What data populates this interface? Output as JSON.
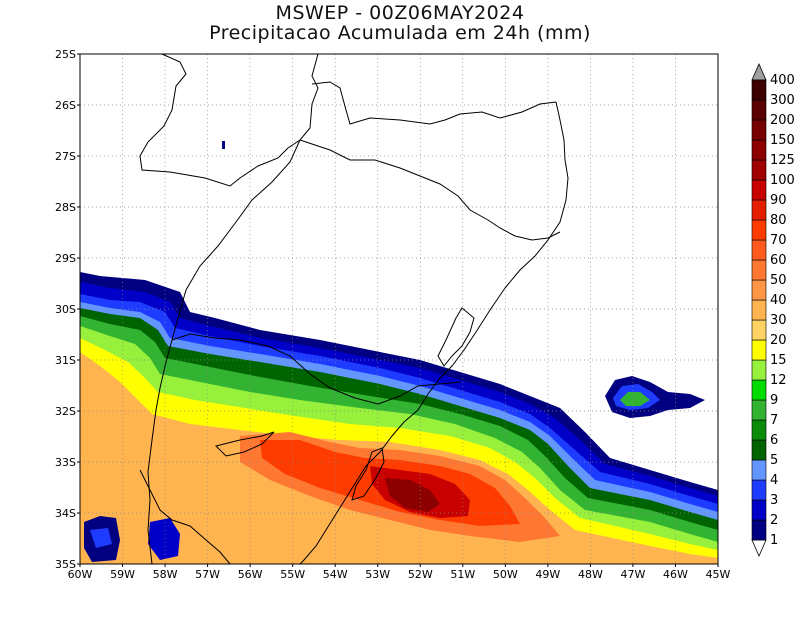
{
  "title": {
    "line1": "MSWEP - 00Z06MAY2024",
    "line2": "Precipitacao Acumulada em 24h (mm)"
  },
  "map": {
    "lon_range": [
      -60,
      -45
    ],
    "lat_range": [
      -35,
      -25
    ],
    "lat_labels": [
      "25S",
      "26S",
      "27S",
      "28S",
      "29S",
      "30S",
      "31S",
      "32S",
      "33S",
      "34S",
      "35S"
    ],
    "lon_labels": [
      "60W",
      "59W",
      "58W",
      "57W",
      "56W",
      "55W",
      "54W",
      "53W",
      "52W",
      "51W",
      "50W",
      "49W",
      "48W",
      "47W",
      "46W",
      "45W"
    ],
    "grid": "dotted"
  },
  "colorbar": {
    "units": "mm",
    "levels": [
      "1",
      "2",
      "3",
      "4",
      "5",
      "6",
      "7",
      "9",
      "12",
      "15",
      "20",
      "30",
      "40",
      "50",
      "60",
      "70",
      "80",
      "90",
      "100",
      "125",
      "150",
      "200",
      "300",
      "400"
    ],
    "colors": [
      "#ffffff",
      "#000080",
      "#0000c8",
      "#1e3cff",
      "#6496ff",
      "#006400",
      "#0a8c0a",
      "#32b432",
      "#00dc00",
      "#96f03c",
      "#ffff00",
      "#ffd264",
      "#ffb450",
      "#ff9646",
      "#ff7832",
      "#ff5a1e",
      "#ff3c00",
      "#e61e00",
      "#c80000",
      "#a00000",
      "#8c0000",
      "#780000",
      "#5a0000",
      "#3c0000",
      "#280000"
    ]
  },
  "precip_bands": [
    {
      "label": "1-2 mm",
      "color": "#000080"
    },
    {
      "label": "2-3 mm",
      "color": "#0000c8"
    },
    {
      "label": "3-4 mm",
      "color": "#1e3cff"
    },
    {
      "label": "4-5 mm",
      "color": "#6496ff"
    },
    {
      "label": "5-7 mm",
      "color": "#006400"
    },
    {
      "label": "7-12 mm",
      "color": "#32b432"
    },
    {
      "label": "12-20 mm",
      "color": "#96f03c"
    },
    {
      "label": "20-30 mm",
      "color": "#ffff00"
    },
    {
      "label": "30-50 mm",
      "color": "#ffb450"
    },
    {
      "label": "50-70 mm",
      "color": "#ff7832"
    },
    {
      "label": "70-90 mm",
      "color": "#ff3c00"
    },
    {
      "label": "90-125 mm",
      "color": "#c80000"
    },
    {
      "label": "> 125 mm",
      "color": "#8c0000"
    }
  ]
}
